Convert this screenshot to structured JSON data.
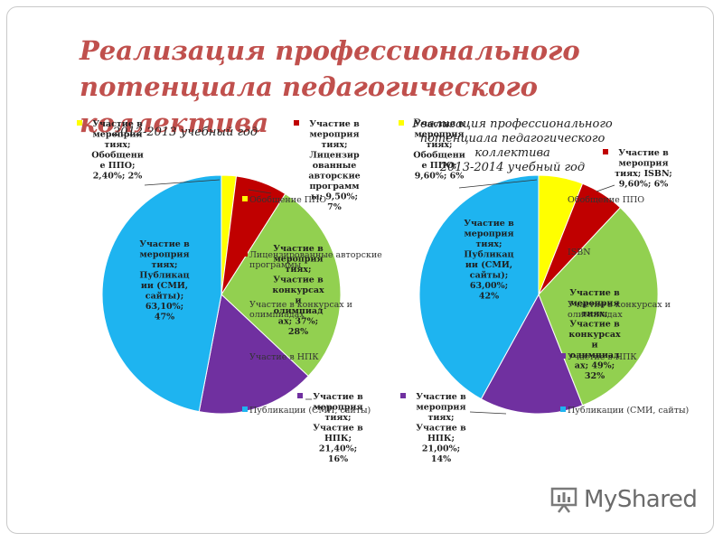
{
  "slide": {
    "title_lines": [
      "Реализация профессионального",
      "потенциала педагогического коллектива"
    ]
  },
  "watermark": {
    "text": "MyShared"
  },
  "colors": {
    "title": "#c0504d",
    "series": [
      "#ffff00",
      "#c00000",
      "#92d050",
      "#7030a0",
      "#1eb4f0"
    ]
  },
  "chart_data": [
    {
      "type": "pie",
      "title": "2012-2013 учебный год",
      "categories": [
        "Обобщение ППО",
        "Лицензированные авторские программы",
        "Участие в конкурсах и олимпиадах",
        "Участие в НПК",
        "Публикации (СМИ, сайты)"
      ],
      "values": [
        2,
        7,
        28,
        16,
        47
      ],
      "data_labels": [
        [
          "Участие в",
          "мероприя",
          "тиях;",
          "Обобщени",
          "е ППО;",
          "2,40%; 2%"
        ],
        [
          "Участие в",
          "мероприя",
          "тиях;",
          "Лицензир",
          "ованные",
          "авторские",
          "программ",
          "ы; 9,50%;",
          "7%"
        ],
        [
          "Участие в",
          "мероприя",
          "тиях;",
          "Участие в",
          "конкурсах",
          "и",
          "олимпиад",
          "ах; 37%;",
          "28%"
        ],
        [
          "Участие в",
          "мероприя",
          "тиях;",
          "Участие в",
          "НПК;",
          "21,40%;",
          "16%"
        ],
        [
          "Участие в",
          "мероприя",
          "тиях;",
          "Публикац",
          "ии (СМИ,",
          "сайты);",
          "63,10%;",
          "47%"
        ]
      ],
      "legend": [
        "Обобщение ППО",
        "Лицензированные авторские программы",
        "Участие в конкурсах и олимпиадах",
        "Участие в НПК",
        "Публикации (СМИ, сайты)"
      ]
    },
    {
      "type": "pie",
      "title": "Реализация профессионального потенциала педагогического коллектива 2013-2014 учебный год",
      "title_lines": [
        "Реализация профессионального",
        "потенциала педагогического",
        "коллектива",
        "2013-2014 учебный год"
      ],
      "categories": [
        "Обобщение ППО",
        "ISBN",
        "Участие в конкурсах и олимпиадах",
        "Участие в НПК",
        "Публикации (СМИ, сайты)"
      ],
      "values": [
        6,
        6,
        32,
        14,
        42
      ],
      "data_labels": [
        [
          "Участие в",
          "мероприя",
          "тиях;",
          "Обобщени",
          "е ППО;",
          "9,60%; 6%"
        ],
        [
          "Участие в",
          "мероприя",
          "тиях; ISBN;",
          "9,60%; 6%"
        ],
        [
          "Участие в",
          "мероприя",
          "тиях;",
          "Участие в",
          "конкурсах",
          "и",
          "олимпиад",
          "ах; 49%;",
          "32%"
        ],
        [
          "Участие в",
          "мероприя",
          "тиях;",
          "Участие в",
          "НПК;",
          "21,00%;",
          "14%"
        ],
        [
          "Участие в",
          "мероприя",
          "тиях;",
          "Публикац",
          "ии (СМИ,",
          "сайты);",
          "63,00%;",
          "42%"
        ]
      ],
      "legend": [
        "Обобщение ППО",
        "ISBN",
        "Участие в конкурсах и олимпиадах",
        "Участие в НПК",
        "Публикации (СМИ, сайты)"
      ]
    }
  ]
}
